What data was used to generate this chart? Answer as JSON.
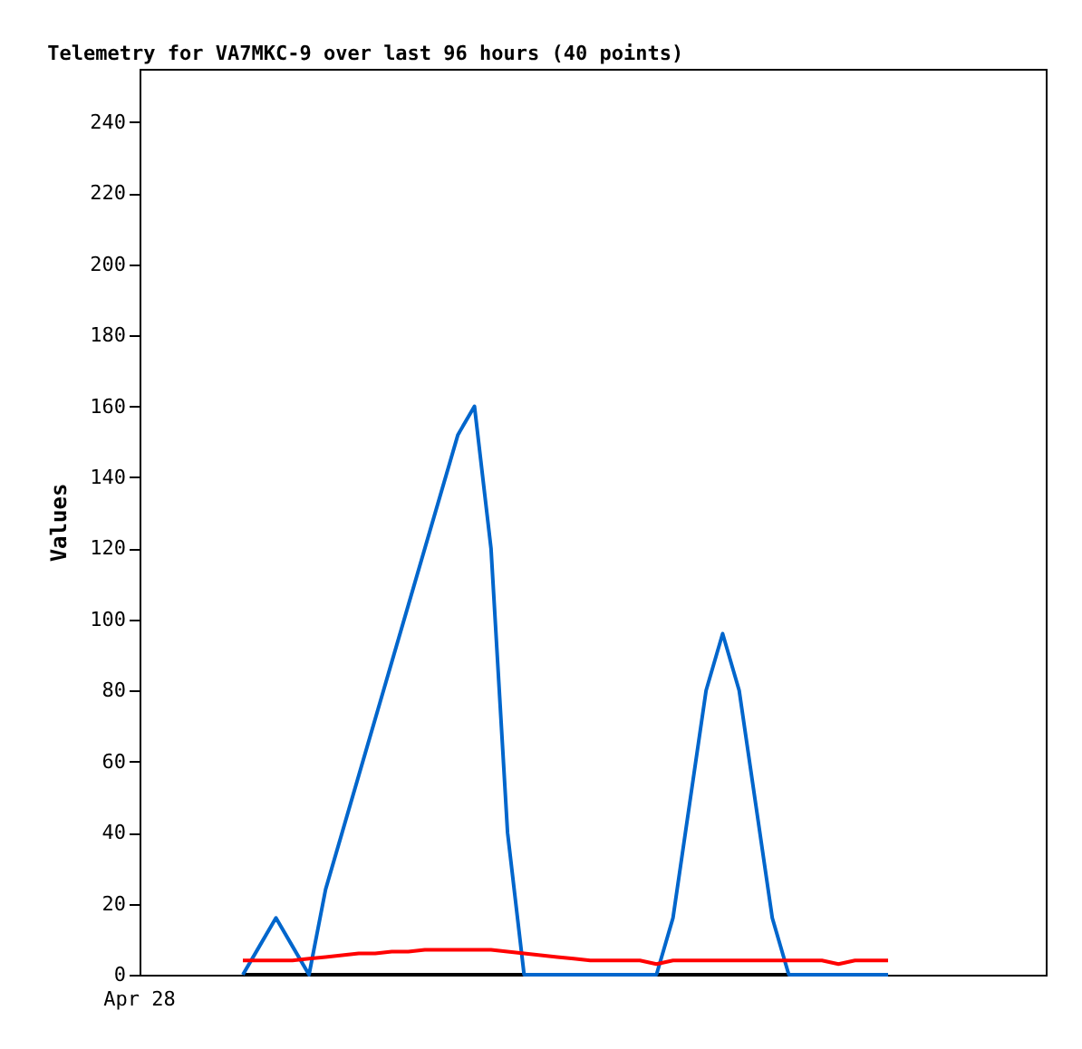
{
  "chart_data": {
    "type": "line",
    "title": "Telemetry for VA7MKC-9 over last 96 hours (40 points)",
    "ylabel": "Values",
    "annotations": [
      "Apr 28"
    ],
    "categories": [
      null,
      null,
      null,
      null,
      null,
      null,
      null,
      null,
      null,
      null,
      null,
      null,
      null,
      null,
      null,
      null,
      null,
      null,
      null,
      null,
      null,
      null,
      null,
      null,
      null,
      null,
      null,
      null,
      null,
      null,
      null,
      null,
      null,
      null,
      null,
      null,
      null,
      null,
      null,
      null
    ],
    "ylim": [
      0,
      255
    ],
    "yticks": [
      0,
      20,
      40,
      60,
      80,
      100,
      120,
      140,
      160,
      180,
      200,
      220,
      240
    ],
    "tick_labels": "y",
    "grid": false,
    "marker": "none",
    "line_style": "solid",
    "series": [
      {
        "color": "#000000",
        "values": [
          0,
          0,
          0,
          0,
          0,
          0,
          0,
          0,
          0,
          0,
          0,
          0,
          0,
          0,
          0,
          0,
          0,
          0,
          0,
          0,
          0,
          0,
          0,
          0,
          0,
          0,
          0,
          0,
          0,
          0,
          0,
          0,
          0,
          0,
          0,
          0,
          0,
          0,
          0,
          0
        ]
      },
      {
        "color": "#0066cc",
        "values": [
          0,
          8,
          16,
          8,
          0,
          24,
          40,
          56,
          72,
          88,
          104,
          120,
          136,
          152,
          160,
          120,
          40,
          0,
          0,
          0,
          0,
          0,
          0,
          0,
          0,
          0,
          16,
          48,
          80,
          96,
          80,
          48,
          16,
          0,
          0,
          0,
          0,
          0,
          0,
          0
        ]
      },
      {
        "color": "#ff0000",
        "values": [
          4,
          4,
          4,
          4,
          4.5,
          5,
          5.5,
          6,
          6,
          6.5,
          6.5,
          7,
          7,
          7,
          7,
          7,
          6.5,
          6,
          5.5,
          5,
          4.5,
          4,
          4,
          4,
          4,
          3,
          4,
          4,
          4,
          4,
          4,
          4,
          4,
          4,
          4,
          4,
          3,
          4,
          4,
          4
        ]
      }
    ]
  }
}
